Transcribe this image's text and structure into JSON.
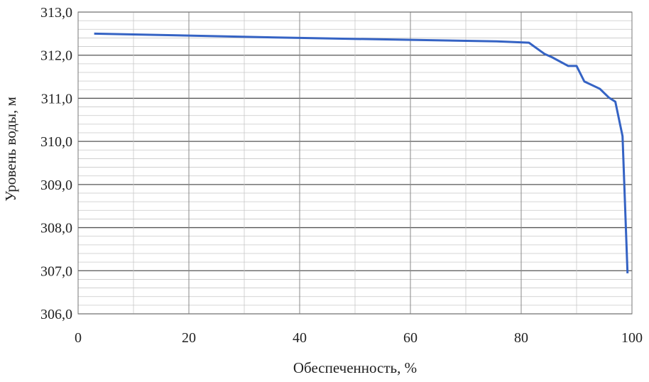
{
  "chart_data": {
    "type": "line",
    "title": "",
    "xlabel": "Обеспеченность, %",
    "ylabel": "Уровень воды, м",
    "xlim": [
      0,
      100
    ],
    "ylim": [
      306,
      313
    ],
    "x_ticks": [
      "0",
      "20",
      "40",
      "60",
      "80",
      "100"
    ],
    "y_ticks": [
      "306,0",
      "307,0",
      "308,0",
      "309,0",
      "310,0",
      "311,0",
      "312,0",
      "313,0"
    ],
    "grid": true,
    "line_color": "#3563c4",
    "series": [
      {
        "x": [
          2.9,
          40,
          75.6,
          81.4,
          84.2,
          85.6,
          88.5,
          90.0,
          91.4,
          94.2,
          95.8,
          97.0,
          98.3,
          99.2
        ],
        "y": [
          312.5,
          312.4,
          312.32,
          312.29,
          312.03,
          311.95,
          311.75,
          311.75,
          311.39,
          311.22,
          311.02,
          310.92,
          310.12,
          306.94
        ]
      }
    ]
  }
}
